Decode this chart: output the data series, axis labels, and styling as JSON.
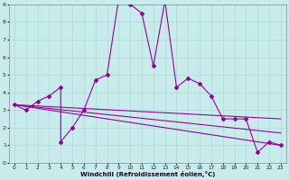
{
  "title": "",
  "xlabel": "Windchill (Refroidissement éolien,°C)",
  "bg_color": "#c8ecec",
  "grid_color": "#b0d8d8",
  "line_color": "#990099",
  "xlim": [
    -0.5,
    23.5
  ],
  "ylim": [
    0,
    9
  ],
  "xticks": [
    0,
    1,
    2,
    3,
    4,
    5,
    6,
    7,
    8,
    9,
    10,
    11,
    12,
    13,
    14,
    15,
    16,
    17,
    18,
    19,
    20,
    21,
    22,
    23
  ],
  "yticks": [
    0,
    1,
    2,
    3,
    4,
    5,
    6,
    7,
    8,
    9
  ],
  "line1_x": [
    0,
    1,
    2,
    3,
    4,
    4,
    5,
    6,
    7,
    8,
    9,
    10,
    11,
    12,
    13,
    14,
    15,
    16,
    17,
    18,
    19,
    20,
    21,
    22,
    23
  ],
  "line1_y": [
    3.3,
    3.0,
    3.5,
    3.8,
    4.3,
    1.2,
    2.0,
    3.0,
    4.7,
    5.0,
    9.3,
    9.0,
    8.5,
    5.5,
    9.2,
    4.3,
    4.8,
    4.5,
    3.8,
    2.5,
    2.5,
    2.5,
    0.6,
    1.2,
    1.0
  ],
  "line2_x": [
    0,
    23
  ],
  "line2_y": [
    3.3,
    1.0
  ],
  "line3_x": [
    0,
    23
  ],
  "line3_y": [
    3.3,
    2.5
  ],
  "line4_x": [
    0,
    23
  ],
  "line4_y": [
    3.3,
    1.7
  ]
}
